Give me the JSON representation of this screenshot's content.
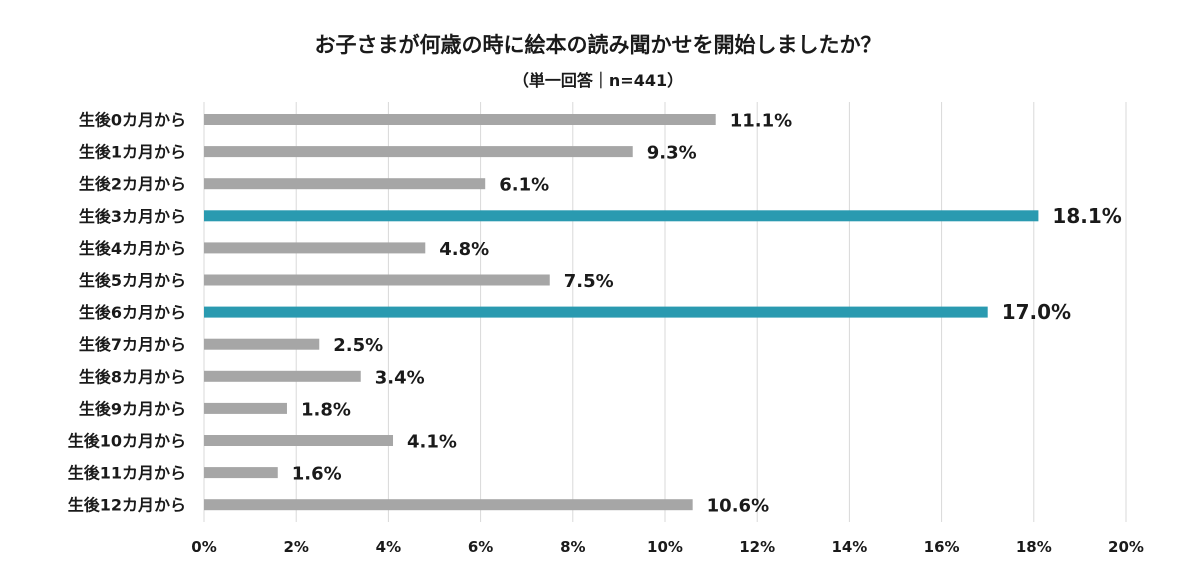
{
  "chart_data": {
    "type": "bar",
    "orientation": "horizontal",
    "title": "お子さまが何歳の時に絵本の読み聞かせを開始しましたか？",
    "subtitle": "（単一回答｜n=441）",
    "categories": [
      "生後0カ月から",
      "生後1カ月から",
      "生後2カ月から",
      "生後3カ月から",
      "生後4カ月から",
      "生後5カ月から",
      "生後6カ月から",
      "生後7カ月から",
      "生後8カ月から",
      "生後9カ月から",
      "生後10カ月から",
      "生後11カ月から",
      "生後12カ月から"
    ],
    "values": [
      11.1,
      9.3,
      6.1,
      18.1,
      4.8,
      7.5,
      17.0,
      2.5,
      3.4,
      1.8,
      4.1,
      1.6,
      10.6
    ],
    "data_labels": [
      "11.1%",
      "9.3%",
      "6.1%",
      "18.1%",
      "4.8%",
      "7.5%",
      "17.0%",
      "2.5%",
      "3.4%",
      "1.8%",
      "4.1%",
      "1.6%",
      "10.6%"
    ],
    "highlight": [
      false,
      false,
      false,
      true,
      false,
      false,
      true,
      false,
      false,
      false,
      false,
      false,
      false
    ],
    "xlim": [
      0,
      20
    ],
    "xticks": [
      0,
      2,
      4,
      6,
      8,
      10,
      12,
      14,
      16,
      18,
      20
    ],
    "xtick_labels": [
      "0%",
      "2%",
      "4%",
      "6%",
      "8%",
      "10%",
      "12%",
      "14%",
      "16%",
      "18%",
      "20%"
    ],
    "xlabel": "",
    "ylabel": "",
    "grid": true,
    "legend": "none",
    "colors": {
      "bar": "#a6a6a6",
      "highlight": "#2a9ab0",
      "grid": "#d9d9d9"
    }
  }
}
